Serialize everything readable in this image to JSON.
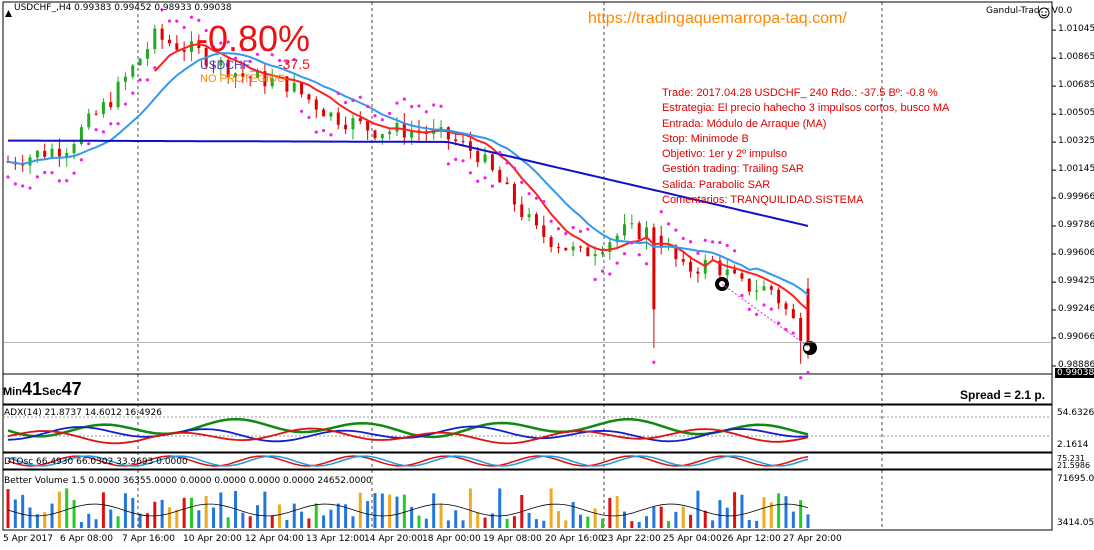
{
  "header": {
    "symbol_info": "USDCHF_,H4  0.99383 0.99452 0.98933 0.99038",
    "url": "https://tradingaquemarropa-taq.com/",
    "indicator_name": "Gandul-Trader V0.0",
    "pct_change": "-0.80%",
    "pair_label": "USDCHF_",
    "pips": "-37.5",
    "overlap_label": "NO PROTEGIDO"
  },
  "info_box": {
    "lines": [
      "Trade: 2017.04.28 USDCHF_ 240  Rdo.: -37.5  Bº: -0.8 %",
      "Estrategia: El precio hahecho 3 impulsos cortos, busco MA",
      "Entrada: Módulo de Arraque (MA)",
      "Stop: Minimode B",
      "Objetivo: 1er y 2º impulso",
      "Gestión trading: Trailing SAR",
      "Salida: Parabolic SAR",
      "Comentarios: TRANQUILIDAD.SISTEMA"
    ]
  },
  "status": {
    "min_label": "Min",
    "min_value": "41",
    "sec_label": "Sec",
    "sec_value": "47",
    "spread": "Spread = 2.1 p."
  },
  "price_axis": {
    "ticks": [
      "1.01045",
      "1.00865",
      "1.00685",
      "1.00505",
      "1.00325",
      "1.00145",
      "0.99966",
      "0.99786",
      "0.99606",
      "0.99425",
      "0.99246",
      "0.99066",
      "0.98886"
    ],
    "current": "0.99038"
  },
  "adx": {
    "label": "ADX(14) 21.8737 14.6012 16.4926",
    "ticks": [
      "54.6326",
      "2.1614"
    ]
  },
  "dtosc": {
    "label": "DTOsc 66.4930 66.0302 33.9693 0.0000",
    "ticks": [
      "75.2​31",
      "21.5986"
    ]
  },
  "volume": {
    "label": "Better Volume 1.5  0.0000 36355.0000 0.0000 0.0000 0.0000 0.0000 24652.0000",
    "ticks": [
      "71695.05",
      "3414.05"
    ]
  },
  "time_axis": {
    "labels": [
      "5 Apr 2017",
      "6 Apr 08:00",
      "7 Apr 16:00",
      "10 Apr 20:00",
      "12 Apr 04:00",
      "13 Apr 12:00",
      "14 Apr 20:00",
      "18 Apr 00:00",
      "19 Apr 08:00",
      "20 Apr 16:00",
      "23 Apr 22:00",
      "25 Apr 04:00",
      "26 Apr 12:00",
      "27 Apr 20:00"
    ]
  },
  "colors": {
    "bull": "#22aa22",
    "bear": "#e00000",
    "ma_fast": "#ff2020",
    "ma_slow": "#1010cc",
    "ma_light": "#3399ee",
    "sar": "#ee22ee",
    "url": "#ff8800"
  },
  "chart_data": {
    "type": "candlestick",
    "title": "USDCHF_,H4",
    "ylim": [
      0.9886,
      1.012
    ],
    "candles_count": 110,
    "last": 0.99038
  }
}
